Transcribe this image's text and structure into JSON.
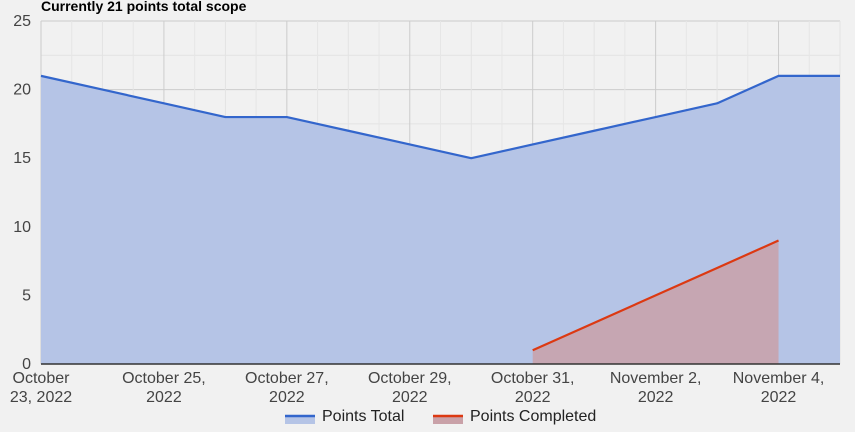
{
  "chart_data": {
    "type": "area",
    "title": "Currently 21 points total scope",
    "xlabel": "",
    "ylabel": "",
    "ylim": [
      0,
      25
    ],
    "yticks": [
      0,
      5,
      10,
      15,
      20,
      25
    ],
    "x": [
      "2022-10-23",
      "2022-10-24",
      "2022-10-25",
      "2022-10-26",
      "2022-10-27",
      "2022-10-28",
      "2022-10-29",
      "2022-10-30",
      "2022-10-31",
      "2022-11-01",
      "2022-11-02",
      "2022-11-03",
      "2022-11-04",
      "2022-11-05"
    ],
    "xlim": [
      "2022-10-23",
      "2022-11-05"
    ],
    "xtick_labels": [
      [
        "October",
        "23, 2022"
      ],
      [
        "October 25,",
        "2022"
      ],
      [
        "October 27,",
        "2022"
      ],
      [
        "October 29,",
        "2022"
      ],
      [
        "October 31,",
        "2022"
      ],
      [
        "November 2,",
        "2022"
      ],
      [
        "November 4,",
        "2022"
      ]
    ],
    "grid": true,
    "legend_position": "bottom",
    "series": [
      {
        "name": "Points Total",
        "color": "#3366cc",
        "fill": "#b5c4e6",
        "x": [
          "2022-10-23",
          "2022-10-24",
          "2022-10-25",
          "2022-10-26",
          "2022-10-27",
          "2022-10-28",
          "2022-10-29",
          "2022-10-30",
          "2022-10-31",
          "2022-11-01",
          "2022-11-02",
          "2022-11-03",
          "2022-11-04",
          "2022-11-05"
        ],
        "values": [
          21,
          20,
          19,
          18,
          18,
          17,
          16,
          15,
          16,
          17,
          18,
          19,
          21,
          21
        ]
      },
      {
        "name": "Points Completed",
        "color": "#dc3912",
        "fill": "#c9a1a8",
        "x": [
          "2022-10-31",
          "2022-11-01",
          "2022-11-02",
          "2022-11-03",
          "2022-11-04"
        ],
        "values": [
          1,
          3,
          5,
          7,
          9
        ]
      }
    ]
  }
}
